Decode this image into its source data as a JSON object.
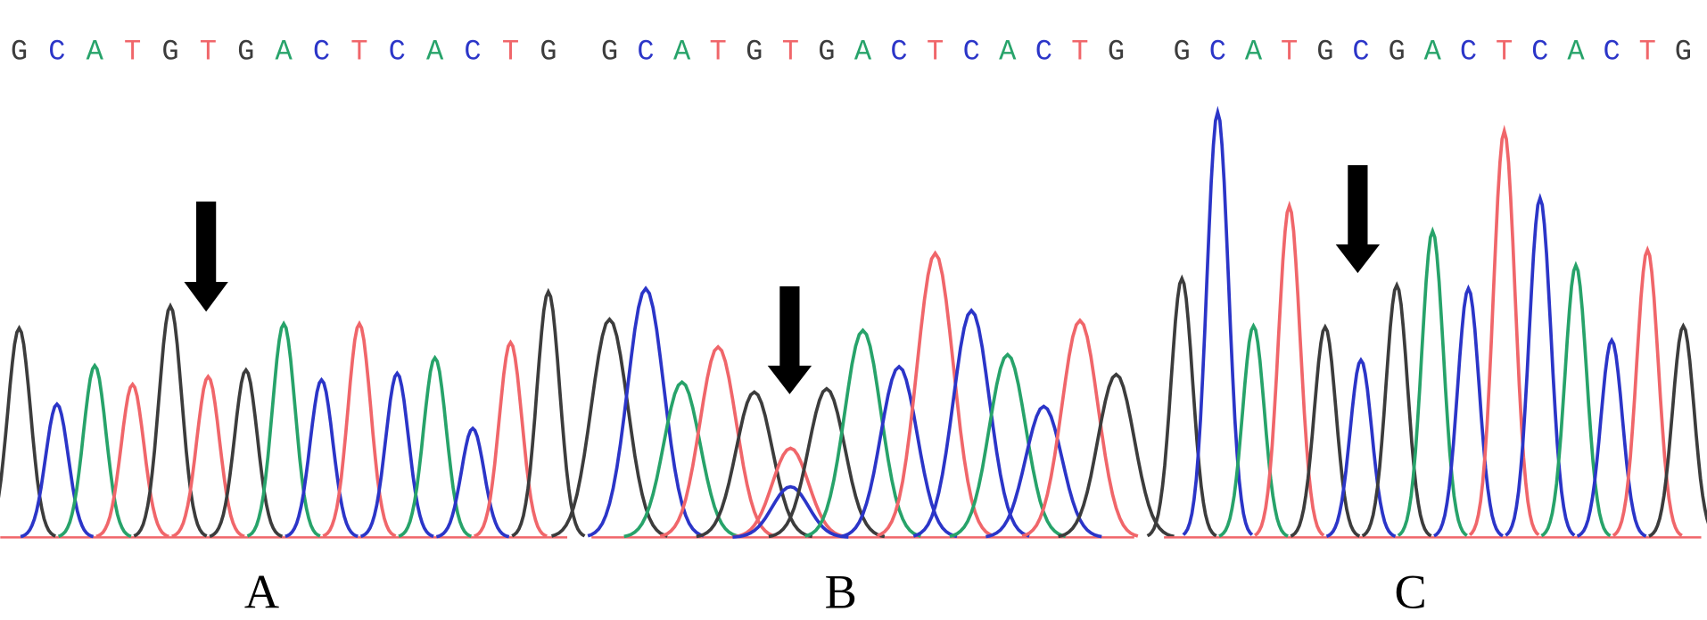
{
  "colors": {
    "G": "#3c3c3c",
    "C": "#2b35c8",
    "A": "#27a36a",
    "T": "#f0666a"
  },
  "panels": [
    {
      "label": "A",
      "sequence": [
        "G",
        "C",
        "A",
        "T",
        "G",
        "T",
        "G",
        "A",
        "C",
        "T",
        "C",
        "A",
        "C",
        "T",
        "G"
      ],
      "peaks": [
        {
          "G": 190
        },
        {
          "C": 121
        },
        {
          "A": 156
        },
        {
          "T": 139
        },
        {
          "G": 210
        },
        {
          "T": 146
        },
        {
          "G": 152
        },
        {
          "A": 194
        },
        {
          "C": 143
        },
        {
          "T": 194
        },
        {
          "C": 149
        },
        {
          "A": 163
        },
        {
          "C": 99
        },
        {
          "T": 177
        },
        {
          "G": 223
        }
      ]
    },
    {
      "label": "B",
      "sequence": [
        "G",
        "C",
        "A",
        "T",
        "G",
        "T",
        "G",
        "A",
        "C",
        "T",
        "C",
        "A",
        "C",
        "T",
        "G"
      ],
      "peaks": [
        {
          "G": 198
        },
        {
          "C": 226
        },
        {
          "A": 141
        },
        {
          "T": 173
        },
        {
          "G": 132
        },
        {
          "T": 81,
          "C": 46
        },
        {
          "G": 135
        },
        {
          "A": 188
        },
        {
          "C": 155
        },
        {
          "T": 258
        },
        {
          "C": 206
        },
        {
          "A": 166
        },
        {
          "C": 119
        },
        {
          "T": 197
        },
        {
          "G": 148
        }
      ]
    },
    {
      "label": "C",
      "sequence": [
        "G",
        "C",
        "A",
        "T",
        "G",
        "C",
        "G",
        "A",
        "C",
        "T",
        "C",
        "A",
        "C",
        "T",
        "G"
      ],
      "peaks": [
        {
          "G": 235
        },
        {
          "C": 386
        },
        {
          "A": 192
        },
        {
          "T": 301
        },
        {
          "G": 191
        },
        {
          "C": 161
        },
        {
          "G": 229
        },
        {
          "A": 278
        },
        {
          "C": 226
        },
        {
          "T": 369
        },
        {
          "C": 308
        },
        {
          "A": 247
        },
        {
          "C": 179
        },
        {
          "T": 261
        },
        {
          "G": 192
        }
      ]
    }
  ]
}
